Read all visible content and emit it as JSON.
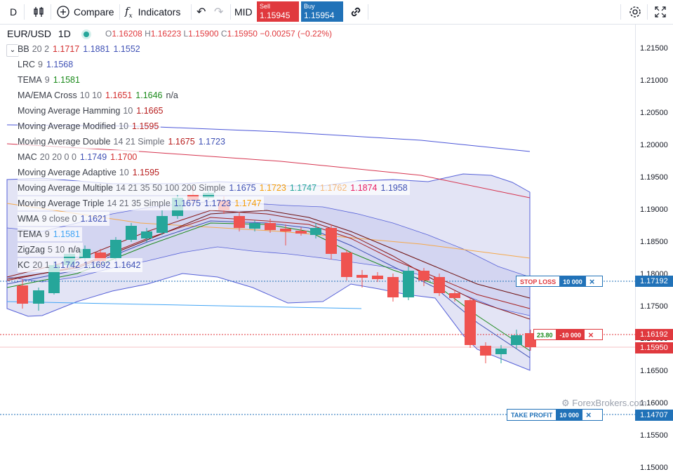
{
  "toolbar": {
    "symbol_short": "D",
    "compare_label": "Compare",
    "indicators_label": "Indicators",
    "mid_label": "MID",
    "sell": {
      "label": "Sell",
      "price": "1.15945",
      "color": "#e0393e"
    },
    "buy": {
      "label": "Buy",
      "price": "1.15954",
      "color": "#2172b8"
    }
  },
  "header": {
    "symbol": "EUR/USD",
    "interval": "1D",
    "o_label": "O",
    "o": "1.16208",
    "h_label": "H",
    "h": "1.16223",
    "l_label": "L",
    "l": "1.15900",
    "c_label": "C",
    "c": "1.15950",
    "change": "−0.00257 (−0.22%)"
  },
  "legend": [
    {
      "name": "BB",
      "params": "20 2",
      "values": [
        {
          "v": "1.1717",
          "c": "#d32f2f"
        },
        {
          "v": "1.1881",
          "c": "#3f51b5"
        },
        {
          "v": "1.1552",
          "c": "#3f51b5"
        }
      ]
    },
    {
      "name": "LRC",
      "params": "9",
      "values": [
        {
          "v": "1.1568",
          "c": "#3f51b5"
        }
      ]
    },
    {
      "name": "TEMA",
      "params": "9",
      "values": [
        {
          "v": "1.1581",
          "c": "#1b8a1b"
        }
      ]
    },
    {
      "name": "MA/EMA Cross",
      "params": "10 10",
      "values": [
        {
          "v": "1.1651",
          "c": "#d32f2f"
        },
        {
          "v": "1.1646",
          "c": "#1b8a1b"
        },
        {
          "v": "n/a",
          "c": "#3b3f49"
        }
      ]
    },
    {
      "name": "Moving Average Hamming",
      "params": "10",
      "values": [
        {
          "v": "1.1665",
          "c": "#b71c1c"
        }
      ]
    },
    {
      "name": "Moving Average Modified",
      "params": "10",
      "values": [
        {
          "v": "1.1595",
          "c": "#b71c1c"
        }
      ]
    },
    {
      "name": "Moving Average Double",
      "params": "14 21 Simple",
      "values": [
        {
          "v": "1.1675",
          "c": "#b71c1c"
        },
        {
          "v": "1.1723",
          "c": "#3f51b5"
        }
      ]
    },
    {
      "name": "MAC",
      "params": "20 20 0 0",
      "values": [
        {
          "v": "1.1749",
          "c": "#3f51b5"
        },
        {
          "v": "1.1700",
          "c": "#d32f2f"
        }
      ]
    },
    {
      "name": "Moving Average Adaptive",
      "params": "10",
      "values": [
        {
          "v": "1.1595",
          "c": "#b71c1c"
        }
      ]
    },
    {
      "name": "Moving Average Multiple",
      "params": "14 21 35 50 100 200 Simple",
      "values": [
        {
          "v": "1.1675",
          "c": "#3f51b5"
        },
        {
          "v": "1.1723",
          "c": "#f59e0b"
        },
        {
          "v": "1.1747",
          "c": "#26a69a"
        },
        {
          "v": "1.1762",
          "c": "#f5b97a"
        },
        {
          "v": "1.1874",
          "c": "#e91e63"
        },
        {
          "v": "1.1958",
          "c": "#3f51b5"
        }
      ]
    },
    {
      "name": "Moving Average Triple",
      "params": "14 21 35 Simple",
      "values": [
        {
          "v": "1.1675",
          "c": "#3f51b5"
        },
        {
          "v": "1.1723",
          "c": "#3f51b5"
        },
        {
          "v": "1.1747",
          "c": "#f59e0b"
        }
      ]
    },
    {
      "name": "WMA",
      "params": "9 close 0",
      "values": [
        {
          "v": "1.1621",
          "c": "#3f51b5"
        }
      ]
    },
    {
      "name": "TEMA",
      "params": "9",
      "values": [
        {
          "v": "1.1581",
          "c": "#42a5f5"
        }
      ]
    },
    {
      "name": "ZigZag",
      "params": "5 10",
      "values": [
        {
          "v": "n/a",
          "c": "#3b3f49"
        }
      ]
    },
    {
      "name": "KC",
      "params": "20 1",
      "values": [
        {
          "v": "1.1742",
          "c": "#3f51b5"
        },
        {
          "v": "1.1692",
          "c": "#3f51b5"
        },
        {
          "v": "1.1642",
          "c": "#3f51b5"
        }
      ]
    }
  ],
  "axis_ticks": [
    "1.21500",
    "1.21000",
    "1.20500",
    "1.20000",
    "1.19500",
    "1.19000",
    "1.18500",
    "1.18000",
    "1.17500",
    "1.17000",
    "1.16500",
    "1.16000",
    "1.15500",
    "1.15000"
  ],
  "price_tags": [
    {
      "value": "1.17192",
      "color": "#2172b8"
    },
    {
      "value": "1.16192",
      "color": "#e0393e"
    },
    {
      "value": "1.15950",
      "color": "#e0393e"
    },
    {
      "value": "1.14707",
      "color": "#2172b8"
    }
  ],
  "orders": {
    "stop_loss": {
      "label": "STOP LOSS",
      "qty": "10 000",
      "close": "×"
    },
    "position": {
      "pnl": "23.80",
      "qty": "-10 000",
      "close": "×"
    },
    "take_profit": {
      "label": "TAKE PROFIT",
      "qty": "10 000",
      "close": "×"
    }
  },
  "watermark": "ForexBrokers.com",
  "colors": {
    "up": "#26a69a",
    "down": "#ef5350",
    "band_fill": "#d9dbf2",
    "band_line": "#3f51b5"
  }
}
